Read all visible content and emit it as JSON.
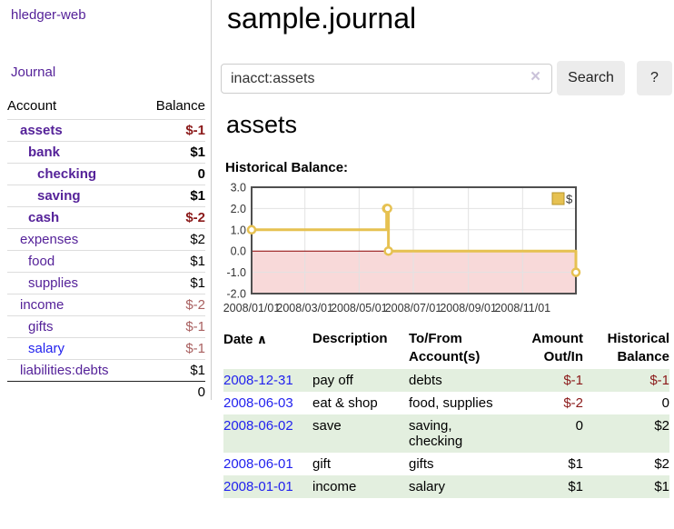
{
  "app": {
    "brand": "hledger-web"
  },
  "sidebar": {
    "journal_link": "Journal",
    "col_account": "Account",
    "col_balance": "Balance",
    "accounts": [
      {
        "name": "assets",
        "balance": "$-1"
      },
      {
        "name": "bank",
        "balance": "$1"
      },
      {
        "name": "checking",
        "balance": "0"
      },
      {
        "name": "saving",
        "balance": "$1"
      },
      {
        "name": "cash",
        "balance": "$-2"
      },
      {
        "name": "expenses",
        "balance": "$2"
      },
      {
        "name": "food",
        "balance": "$1"
      },
      {
        "name": "supplies",
        "balance": "$1"
      },
      {
        "name": "income",
        "balance": "$-2"
      },
      {
        "name": "gifts",
        "balance": "$-1"
      },
      {
        "name": "salary",
        "balance": "$-1"
      },
      {
        "name": "liabilities:debts",
        "balance": "$1"
      }
    ],
    "total": "0"
  },
  "header": {
    "title": "sample.journal"
  },
  "search": {
    "value": "inacct:assets",
    "clear_icon": "×",
    "button": "Search",
    "help_button": "?"
  },
  "account_page": {
    "heading": "assets",
    "chart_label": "Historical Balance:"
  },
  "chart_data": {
    "type": "line",
    "title": "Historical Balance",
    "xlim": [
      "2008-01-01",
      "2008-12-31"
    ],
    "ylim": [
      -2,
      3
    ],
    "yticks": [
      3.0,
      2.0,
      1.0,
      0.0,
      -1.0,
      -2.0
    ],
    "xticks": [
      "2008/01/01",
      "2008/03/01",
      "2008/05/01",
      "2008/07/01",
      "2008/09/01",
      "2008/11/01"
    ],
    "grid": true,
    "legend_position": "top-right",
    "zero_line_color": "#8b0000",
    "negative_region_color": "#f8d9d9",
    "series": [
      {
        "name": "$",
        "color": "#e6c151",
        "step": true,
        "points": [
          {
            "x": "2008-01-01",
            "y": 1
          },
          {
            "x": "2008-06-01",
            "y": 2
          },
          {
            "x": "2008-06-02",
            "y": 2
          },
          {
            "x": "2008-06-03",
            "y": 0
          },
          {
            "x": "2008-12-31",
            "y": -1
          }
        ]
      }
    ]
  },
  "register": {
    "columns": [
      "Date",
      "Description",
      "To/From Account(s)",
      "Amount Out/In",
      "Historical Balance"
    ],
    "sort_arrow": "∧",
    "rows": [
      {
        "date": "2008-12-31",
        "description": "pay off",
        "accounts": "debts",
        "amount": "$-1",
        "balance": "$-1"
      },
      {
        "date": "2008-06-03",
        "description": "eat & shop",
        "accounts": "food, supplies",
        "amount": "$-2",
        "balance": "0"
      },
      {
        "date": "2008-06-02",
        "description": "save",
        "accounts": "saving, checking",
        "amount": "0",
        "balance": "$2"
      },
      {
        "date": "2008-06-01",
        "description": "gift",
        "accounts": "gifts",
        "amount": "$1",
        "balance": "$2"
      },
      {
        "date": "2008-01-01",
        "description": "income",
        "accounts": "salary",
        "amount": "$1",
        "balance": "$1"
      }
    ]
  }
}
